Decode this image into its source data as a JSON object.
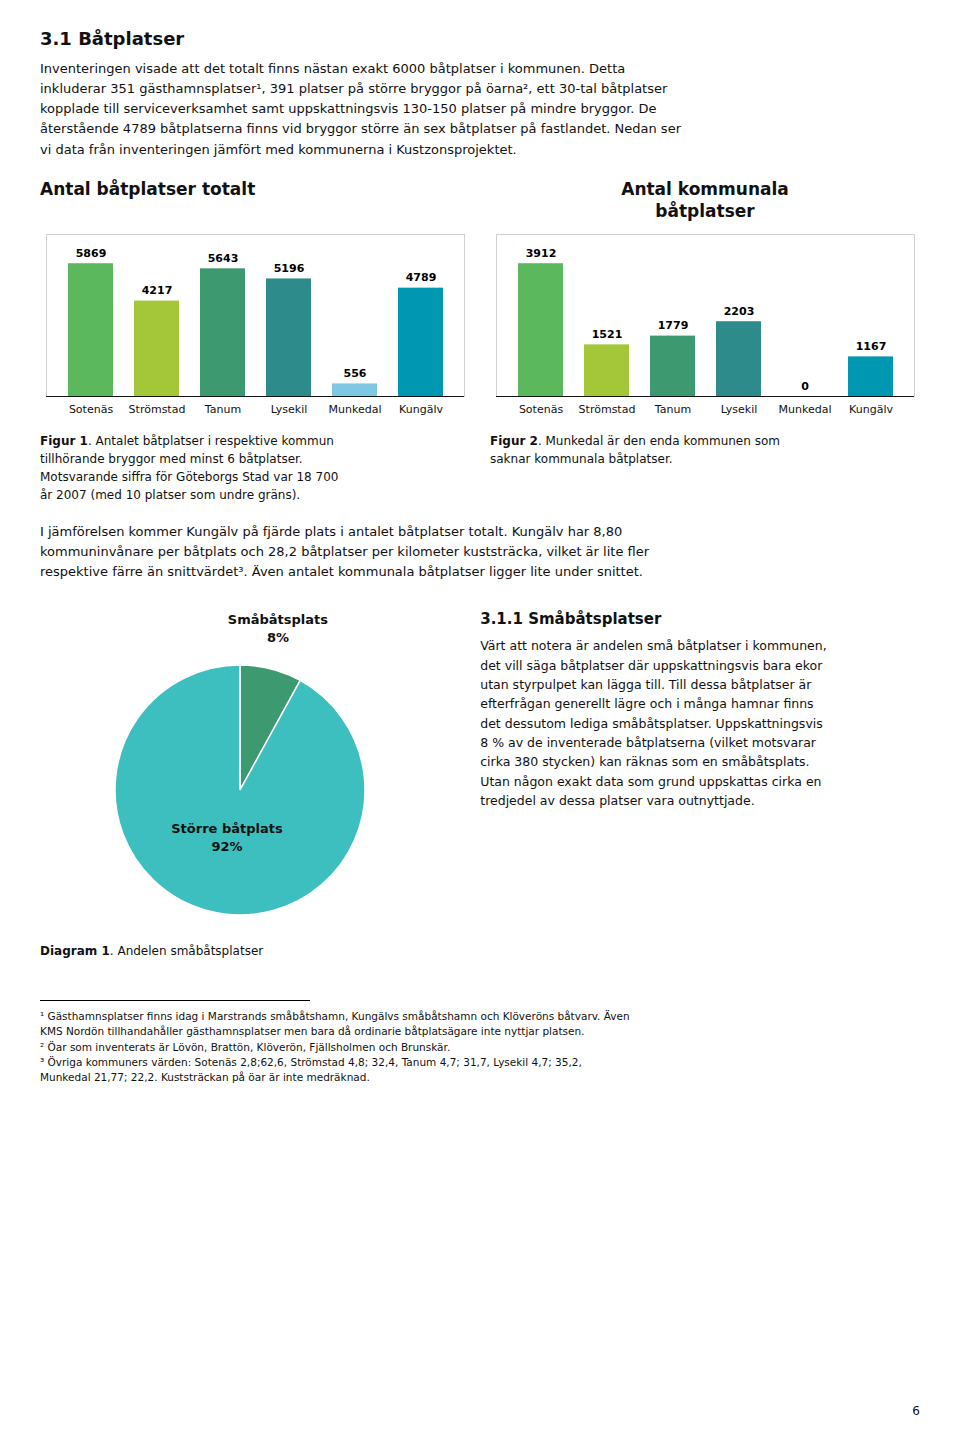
{
  "title": "3.1 Båtplatser",
  "annotations": [
    "Inventeringen visade att det totalt finns nästan exakt 6000 båtplatser i kommunen. Detta\ninkluderar 351 gästhamnsplatser¹, 391 platser på större bryggor på öarna², ett 30-tal båtplatser\nkopplade till serviceverksamhet samt uppskattningsvis 130-150 platser på mindre bryggor.  De\nåterstående 4789 båtplatserna finns vid bryggor större än sex båtplatser på fastlandet. Nedan ser\nvi data från inventeringen jämfört med kommunerna i Kustzonsprojektet.",
    "I jämförelsen kommer Kungälv på fjärde plats i antalet båtplatser totalt. Kungälv har 8,80\nkommuninvånare per båtplats och 28,2 båtplatser per kilometer kuststräcka, vilket är lite fler\nrespektive färre än snittvärdet³. Även antalet kommunala båtplatser ligger lite under snittet.",
    "3.1.1 Småbåtsplatser",
    "Värt att notera är andelen små båtplatser i kommunen,\ndet vill säga båtplatser där uppskattningsvis bara ekor\nutan styrpulpet kan lägga till. Till dessa båtplatser är\nefterfrågan generellt lägre och i många hamnar finns\ndet dessutom lediga småbåtsplatser. Uppskattningsvis\n8 % av de inventerade båtplatserna (vilket motsvarar\ncirka 380 stycken) kan räknas som en småbåtsplats.\nUtan någon exakt data som grund uppskattas cirka en\ntredjedel av dessa platser vara outnyttjade.",
    "¹ Gästhamnsplatser finns idag i Marstrands småbåtshamn, Kungälvs småbåtshamn och Klöveröns båtvarv. Även\nKMS Nordön tillhandahåller gästhamnsplatser men bara då ordinarie båtplatsägare inte nyttjar platsen.",
    "² Öar som inventerats är Lövön, Brattön, Klöverön, Fjällsholmen och Brunskär.",
    "³ Övriga kommuners värden: Sotenäs 2,8;62,6, Strömstad 4,8; 32,4, Tanum 4,7; 31,7, Lysekil 4,7; 35,2,\nMunkedal 21,77; 22,2. Kuststräckan på öar är inte medräknad.",
    "6"
  ],
  "chart_data": [
    {
      "type": "bar",
      "title": "Antal båtplatser totalt",
      "categories": [
        "Sotenäs",
        "Strömstad",
        "Tanum",
        "Lysekil",
        "Munkedal",
        "Kungälv"
      ],
      "values": [
        5869,
        4217,
        5643,
        5196,
        556,
        4789
      ],
      "colors": [
        "#5cb85c",
        "#a4c639",
        "#3d9970",
        "#2e8b8b",
        "#7ec8e3",
        "#0097b2"
      ],
      "ylim": [
        0,
        7160.18
      ],
      "yticks": [],
      "tick_labels": "x",
      "data_labels": true,
      "annotations": [
        "Figur 1. Antalet båtplatser i respektive kommun\ntillhörande bryggor med minst 6 båtplatser.\nMotsvarande siffra för Göteborgs Stad var 18 700\når 2007 (med 10 platser som undre gräns)."
      ]
    },
    {
      "type": "bar",
      "title": "Antal kommunala\nbåtplatser",
      "categories": [
        "Sotenäs",
        "Strömstad",
        "Tanum",
        "Lysekil",
        "Munkedal",
        "Kungälv"
      ],
      "values": [
        3912,
        1521,
        1779,
        2203,
        0,
        1167
      ],
      "colors": [
        "#5cb85c",
        "#a4c639",
        "#3d9970",
        "#2e8b8b",
        "#ffffff",
        "#0097b2"
      ],
      "ylim": [
        0,
        4772.64
      ],
      "yticks": [],
      "tick_labels": "x",
      "data_labels": true,
      "annotations": [
        "Figur 2. Munkedal är den enda kommunen som\nsaknar kommunala båtplatser."
      ]
    },
    {
      "type": "pie",
      "categories": [
        "Småbåtsplats",
        "Större båtplats"
      ],
      "values": [
        8,
        92
      ],
      "value_labels": [
        "8%",
        "92%"
      ],
      "colors": [
        "#3d9970",
        "#3ebfbf"
      ],
      "data_labels": true,
      "annotations": [
        "Diagram 1. Andelen småbåtsplatser"
      ]
    }
  ]
}
